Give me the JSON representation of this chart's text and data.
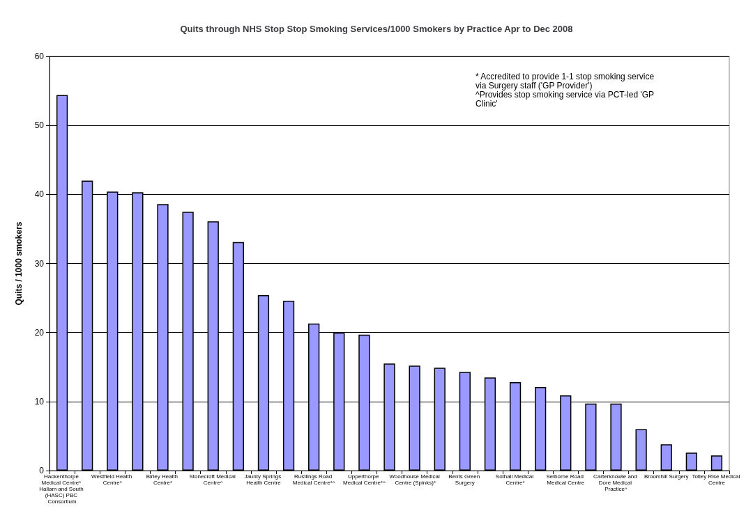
{
  "chart_data": {
    "type": "bar",
    "title": "Quits through NHS Stop Stop Smoking Services/1000 Smokers by Practice Apr to Dec 2008",
    "ylabel": "Quits / 1000 smokers",
    "categories": [
      "Hackenthorpe Medical Centre* Hallam and South (HASC) PBC Consortium",
      null,
      "Westfield Health Centre*",
      null,
      "Birley Health Centre*",
      null,
      "Stonecroft Medical Centre^",
      null,
      "Jaunty Springs Health Centre",
      null,
      "Rustlings Road Medical Centre*^",
      null,
      "Upperthorpe Medical Centre*^",
      null,
      "Woodhouse Medical Centre (Spinks)*",
      null,
      "Bents Green Surgery",
      null,
      "Sothall Medical Centre*",
      null,
      "Selborne Road Medical Centre",
      null,
      "Carterknowle and Dore Medical Practice^",
      null,
      "Broomhill Surgery",
      null,
      "Totley Rise Medical Centre"
    ],
    "values": [
      54.4,
      42.0,
      40.4,
      40.3,
      38.6,
      37.5,
      36.1,
      33.1,
      25.4,
      24.6,
      21.3,
      20.0,
      19.7,
      15.5,
      15.2,
      14.9,
      14.3,
      13.5,
      12.8,
      12.1,
      10.9,
      9.7,
      9.7,
      6.0,
      3.8,
      2.6,
      2.2
    ],
    "color": "#9999ff",
    "ylim": [
      0,
      60
    ],
    "yticks": [
      0,
      10,
      20,
      30,
      40,
      50,
      60
    ],
    "grid": "y",
    "annotations": [
      "* Accredited to provide 1-1 stop smoking service via Surgery staff ('GP Provider')",
      "^Provides stop smoking service via PCT-led 'GP Clinic'"
    ]
  }
}
